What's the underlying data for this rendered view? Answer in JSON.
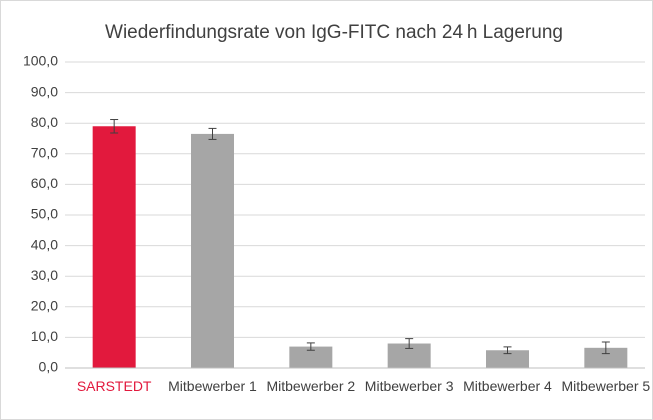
{
  "chart_data": {
    "type": "bar",
    "title": "Wiederfindungsrate von IgG-FITC nach 24 h Lagerung",
    "categories": [
      "SARSTEDT",
      "Mitbewerber 1",
      "Mitbewerber 2",
      "Mitbewerber 3",
      "Mitbewerber 4",
      "Mitbewerber 5"
    ],
    "values": [
      79.0,
      76.5,
      7.0,
      8.0,
      5.8,
      6.6
    ],
    "errors": [
      2.2,
      1.8,
      1.2,
      1.6,
      1.1,
      1.9
    ],
    "colors": [
      "#e2193d",
      "#a6a6a6",
      "#a6a6a6",
      "#a6a6a6",
      "#a6a6a6",
      "#a6a6a6"
    ],
    "label_colors": [
      "#e2193d",
      "#404040",
      "#404040",
      "#404040",
      "#404040",
      "#404040"
    ],
    "ylim": [
      0,
      100
    ],
    "yticks": [
      {
        "value": 0,
        "label": "0,0"
      },
      {
        "value": 10,
        "label": "10,0"
      },
      {
        "value": 20,
        "label": "20,0"
      },
      {
        "value": 30,
        "label": "30,0"
      },
      {
        "value": 40,
        "label": "40,0"
      },
      {
        "value": 50,
        "label": "50,0"
      },
      {
        "value": 60,
        "label": "60,0"
      },
      {
        "value": 70,
        "label": "70,0"
      },
      {
        "value": 80,
        "label": "80,0"
      },
      {
        "value": 90,
        "label": "90,0"
      },
      {
        "value": 100,
        "label": "100,0"
      }
    ],
    "grid": true
  }
}
